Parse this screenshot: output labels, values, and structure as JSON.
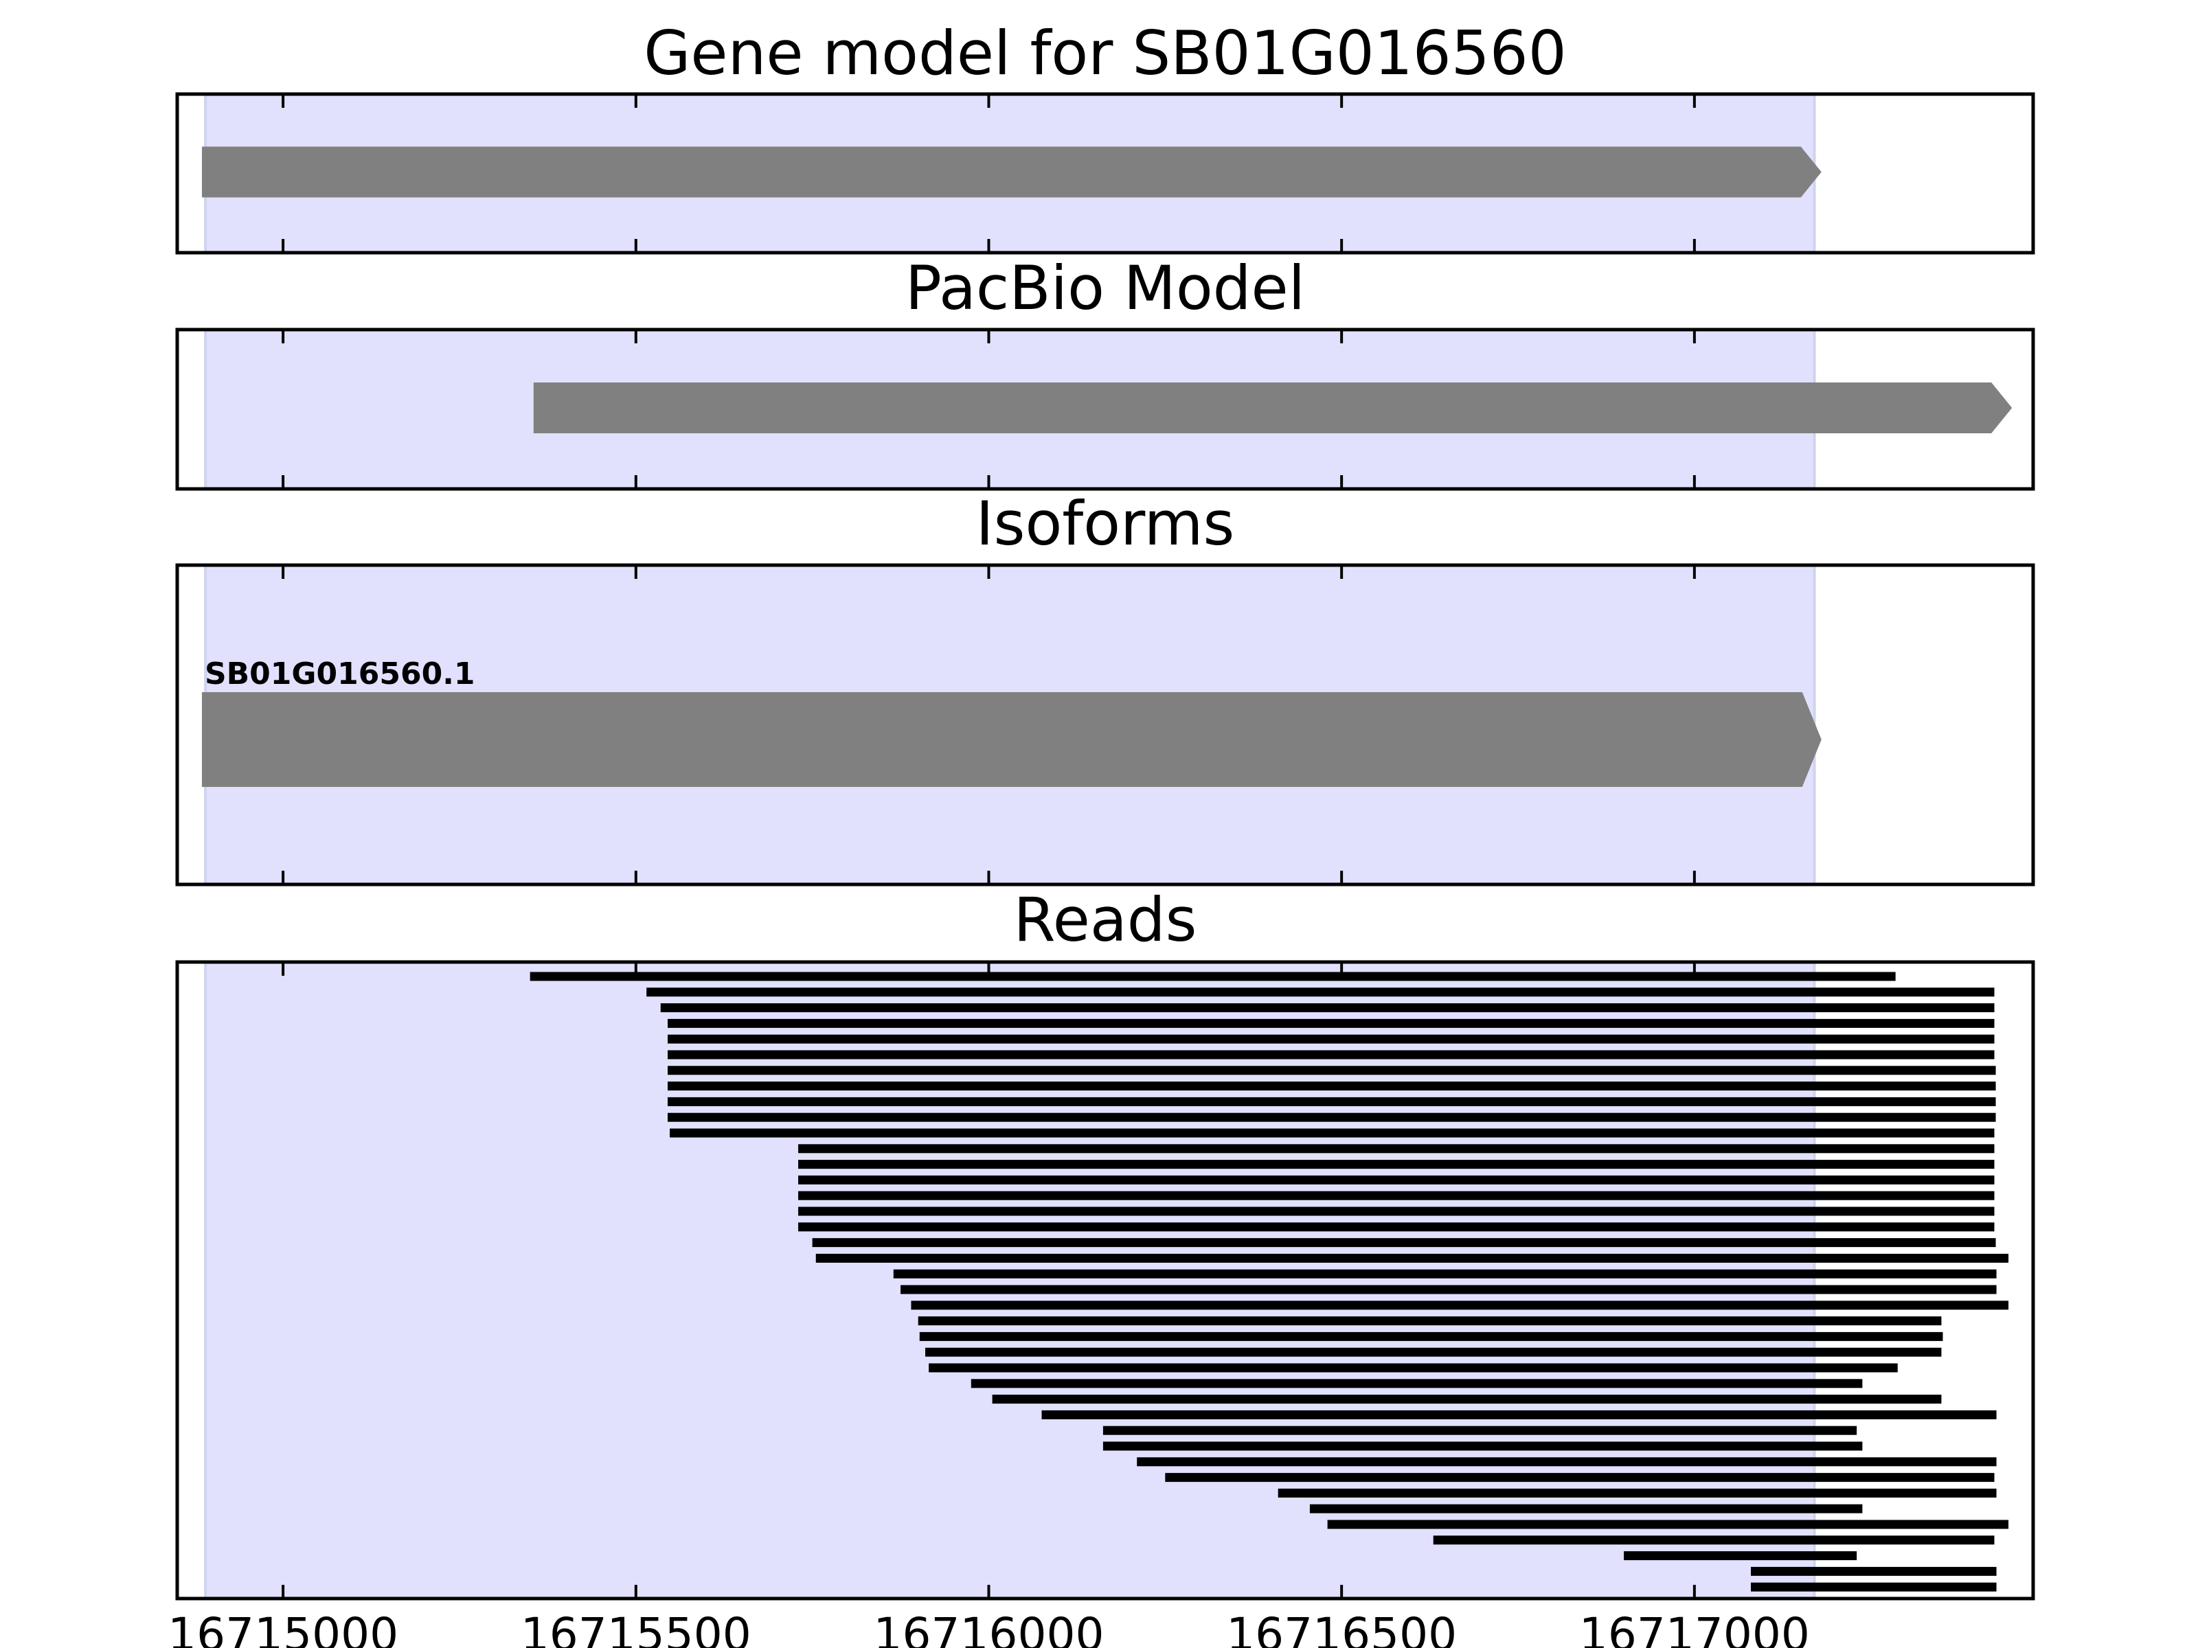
{
  "chart_data": [
    {
      "type": "gene-track",
      "title": "Gene model for SB01G016560",
      "xlim": [
        16714850,
        16717480
      ],
      "shaded_region": [
        16714890,
        16717170
      ],
      "features": [
        {
          "start": 16714885,
          "end": 16717180,
          "strand": "+"
        }
      ]
    },
    {
      "type": "gene-track",
      "title": "PacBio Model",
      "xlim": [
        16714850,
        16717480
      ],
      "shaded_region": [
        16714890,
        16717170
      ],
      "features": [
        {
          "start": 16715355,
          "end": 16717450,
          "strand": "+"
        }
      ]
    },
    {
      "type": "gene-track",
      "title": "Isoforms",
      "xlim": [
        16714850,
        16717480
      ],
      "shaded_region": [
        16714890,
        16717170
      ],
      "features": [
        {
          "label": "SB01G016560.1",
          "start": 16714885,
          "end": 16717180,
          "strand": "+"
        }
      ]
    },
    {
      "type": "read-track",
      "title": "Reads",
      "xlim": [
        16714850,
        16717480
      ],
      "shaded_region": [
        16714890,
        16717170
      ],
      "x_ticks": [
        "16715000",
        "16715500",
        "16716000",
        "16716500",
        "16717000"
      ],
      "reads": [
        [
          16715350,
          16717285
        ],
        [
          16715515,
          16717425
        ],
        [
          16715535,
          16717425
        ],
        [
          16715545,
          16717425
        ],
        [
          16715545,
          16717425
        ],
        [
          16715545,
          16717425
        ],
        [
          16715545,
          16717427
        ],
        [
          16715545,
          16717427
        ],
        [
          16715545,
          16717427
        ],
        [
          16715545,
          16717427
        ],
        [
          16715548,
          16717425
        ],
        [
          16715730,
          16717425
        ],
        [
          16715730,
          16717425
        ],
        [
          16715730,
          16717425
        ],
        [
          16715730,
          16717425
        ],
        [
          16715730,
          16717425
        ],
        [
          16715730,
          16717425
        ],
        [
          16715750,
          16717427
        ],
        [
          16715755,
          16717445
        ],
        [
          16715865,
          16717428
        ],
        [
          16715875,
          16717428
        ],
        [
          16715890,
          16717445
        ],
        [
          16715900,
          16717350
        ],
        [
          16715902,
          16717352
        ],
        [
          16715910,
          16717350
        ],
        [
          16715915,
          16717288
        ],
        [
          16715975,
          16717238
        ],
        [
          16716005,
          16717350
        ],
        [
          16716075,
          16717428
        ],
        [
          16716162,
          16717230
        ],
        [
          16716162,
          16717238
        ],
        [
          16716210,
          16717428
        ],
        [
          16716250,
          16717425
        ],
        [
          16716410,
          16717428
        ],
        [
          16716455,
          16717238
        ],
        [
          16716480,
          16717445
        ],
        [
          16716630,
          16717425
        ],
        [
          16716900,
          16717230
        ],
        [
          16717080,
          16717428
        ],
        [
          16717080,
          16717428
        ]
      ]
    }
  ]
}
